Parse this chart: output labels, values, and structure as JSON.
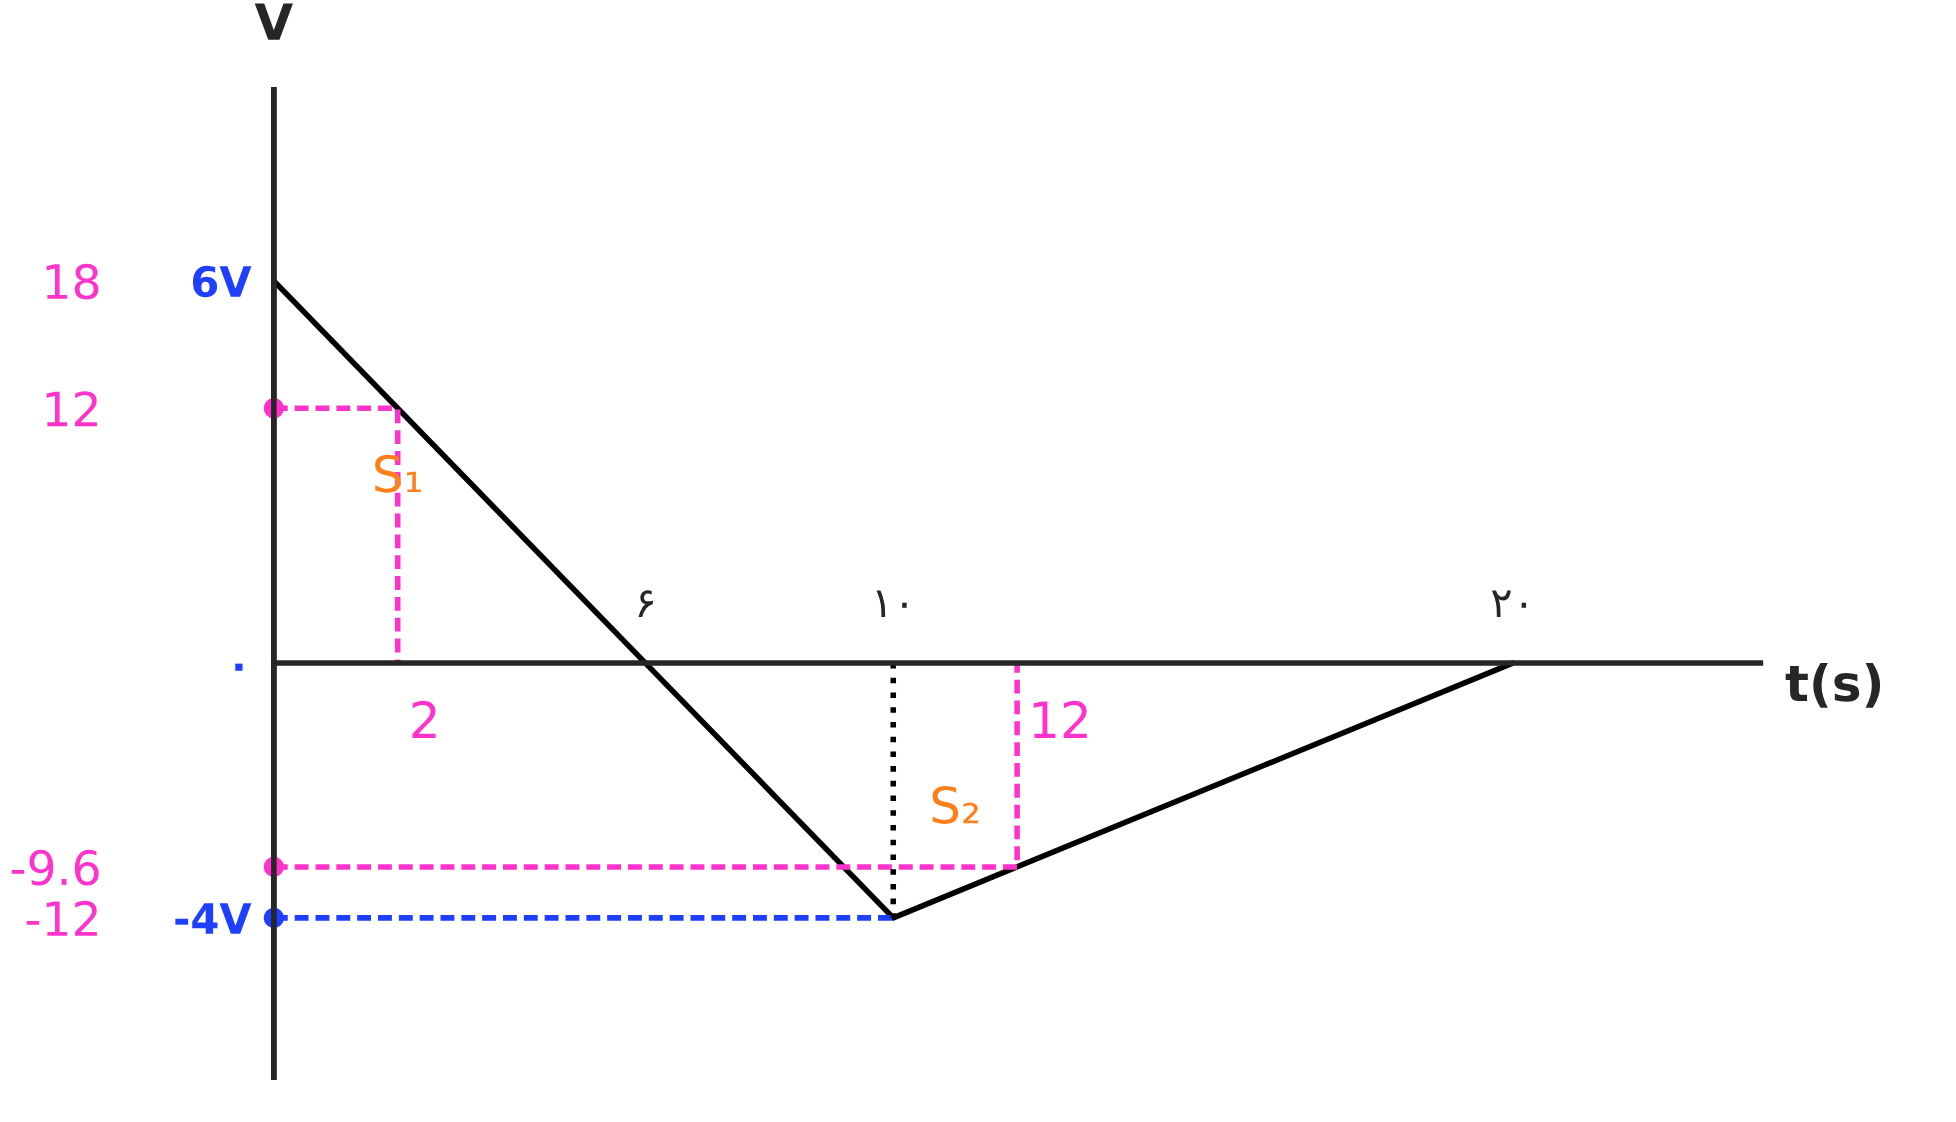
{
  "chart_data": {
    "type": "line",
    "xlabel": "t(s)",
    "ylabel": "V",
    "xlim": [
      0,
      24
    ],
    "ylim": [
      -6.5,
      9
    ],
    "xticks": [
      {
        "value": 6,
        "label": "۶"
      },
      {
        "value": 10,
        "label": "۱۰"
      },
      {
        "value": 20,
        "label": "۲۰"
      }
    ],
    "yticks": [
      {
        "value": 6,
        "label": "6V"
      },
      {
        "value": 0,
        "label": "٠"
      },
      {
        "value": -4,
        "label": "-4V"
      }
    ],
    "y2lim": [
      -19.5,
      27
    ],
    "y2ticks": [
      18,
      12,
      -9.6,
      -12
    ],
    "grid": false,
    "legend": false,
    "series": [
      {
        "x": [
          0,
          6,
          10,
          20
        ],
        "values": [
          6,
          0,
          -4,
          0
        ],
        "color": "#000000",
        "line_style": "solid",
        "marker": "none"
      },
      {
        "x": [
          0,
          2,
          2
        ],
        "values": [
          4,
          4,
          0
        ],
        "color": "#ff33cc",
        "line_style": "dashed",
        "marker": "none"
      },
      {
        "x": [
          0,
          12,
          12
        ],
        "values": [
          -3.2,
          -3.2,
          0
        ],
        "color": "#ff33cc",
        "line_style": "dashed",
        "marker": "none"
      },
      {
        "x": [
          0,
          10
        ],
        "values": [
          -4,
          -4
        ],
        "color": "#1f3fff",
        "line_style": "dashed",
        "marker": "none"
      },
      {
        "x": [
          10,
          10
        ],
        "values": [
          0,
          -4
        ],
        "color": "#000000",
        "line_style": "dotted",
        "marker": "none"
      },
      {
        "type": "scatter",
        "x": [
          0,
          0
        ],
        "values": [
          4,
          -3.2
        ],
        "color": "#ff33cc",
        "marker": "circle"
      },
      {
        "type": "scatter",
        "x": [
          0
        ],
        "values": [
          -4
        ],
        "color": "#1f3fff",
        "marker": "circle"
      }
    ],
    "annotations": [
      {
        "text": "2",
        "x": 2,
        "y": 0
      },
      {
        "text": "12",
        "x": 12,
        "y": 0
      },
      {
        "text": "S₁",
        "x": 2,
        "y": 2
      },
      {
        "text": "S₂",
        "x": 11,
        "y": -3.2
      }
    ]
  }
}
